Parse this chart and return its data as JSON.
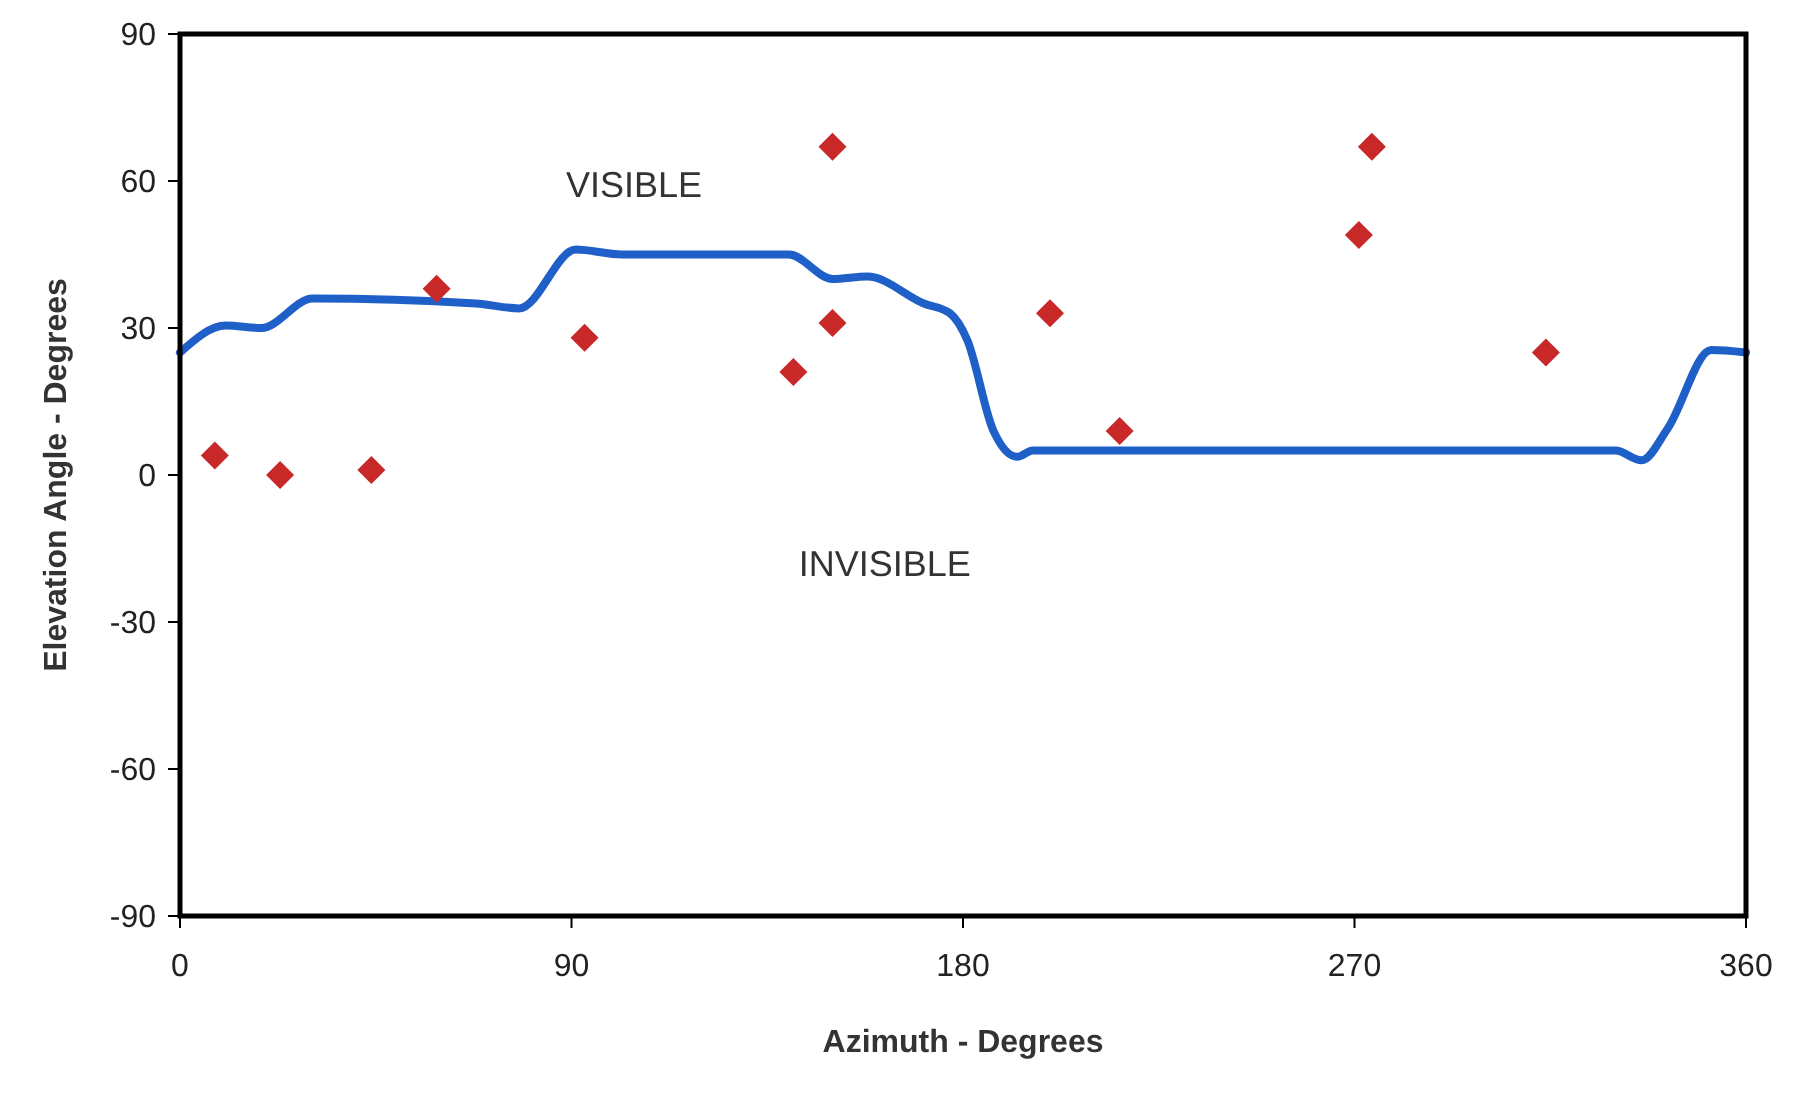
{
  "chart_data": {
    "type": "line",
    "xlabel": "Azimuth - Degrees",
    "ylabel": "Elevation Angle - Degrees",
    "xlim": [
      0,
      360
    ],
    "ylim": [
      -90,
      90
    ],
    "xticks": [
      0,
      90,
      180,
      270,
      360
    ],
    "yticks": [
      -90,
      -60,
      -30,
      0,
      30,
      60,
      90
    ],
    "grid": false,
    "series": [
      {
        "color": "#1f5fc8",
        "marker": "none",
        "line_style": "solid",
        "x": [
          0,
          10.5,
          18.7,
          30.5,
          68,
          78,
          91,
          101.6,
          137,
          140,
          150,
          158,
          171,
          177,
          181,
          187,
          192.5,
          196,
          200,
          330,
          336,
          342,
          352,
          360
        ],
        "values": [
          25,
          30.5,
          30,
          36,
          35,
          34,
          46,
          45,
          45,
          45,
          40,
          40.5,
          35,
          33,
          27.5,
          9,
          3.7,
          5,
          5,
          5,
          3,
          9.5,
          25.5,
          25
        ]
      },
      {
        "type": "scatter",
        "color": "#c82828",
        "marker": "diamond",
        "x": [
          8,
          23,
          44,
          59,
          93,
          141,
          150,
          150,
          200,
          216,
          271,
          274,
          314
        ],
        "values": [
          4,
          0,
          1,
          38,
          28,
          21,
          31,
          67,
          33,
          9,
          49,
          67,
          25
        ]
      }
    ],
    "annotations": [
      "VISIBLE",
      "INVISIBLE"
    ]
  }
}
